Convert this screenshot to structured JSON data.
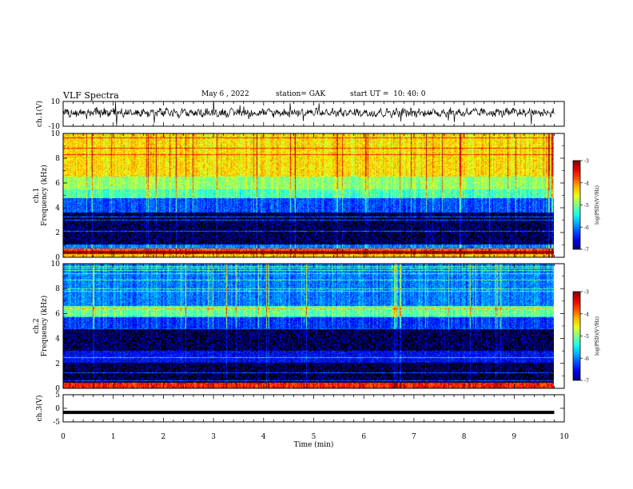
{
  "header": {
    "title": "VLF Spectra",
    "date": "May 6 , 2022",
    "station": "station= GAK",
    "start": "start UT =  10: 40: 0"
  },
  "chart_data": [
    {
      "type": "line",
      "ylabel": "ch.1(V)",
      "ylim": [
        -10,
        10
      ],
      "yticks": [
        "10",
        "-10"
      ],
      "xlim": [
        0,
        10
      ],
      "description_series": "noisy waveform around ~1 V with spikes"
    },
    {
      "type": "heatmap",
      "ylabel": "ch.1\nFrequency (kHz)",
      "ylim": [
        0,
        10
      ],
      "yticks": [
        "0",
        "2",
        "4",
        "6",
        "8",
        "10"
      ],
      "xlim": [
        0,
        10
      ],
      "colorbar": {
        "label": "log(PSD)(V²/Hz)",
        "range": [
          -7,
          -3
        ],
        "ticks": [
          "-3",
          "-4",
          "-5",
          "-6",
          "-7"
        ]
      },
      "bands": [
        {
          "from": 0,
          "to": 0.25,
          "level": -4.3
        },
        {
          "from": 0.25,
          "to": 0.5,
          "level": -3.2
        },
        {
          "from": 0.5,
          "to": 0.7,
          "level": -3.8
        },
        {
          "from": 0.7,
          "to": 1.0,
          "level": -6.0
        },
        {
          "from": 1.0,
          "to": 3.6,
          "level": -6.9
        },
        {
          "from": 3.6,
          "to": 4.8,
          "level": -6.2
        },
        {
          "from": 4.8,
          "to": 5.5,
          "level": -5.2
        },
        {
          "from": 5.5,
          "to": 6.5,
          "level": -4.9
        },
        {
          "from": 6.5,
          "to": 10,
          "level": -4.4
        }
      ]
    },
    {
      "type": "heatmap",
      "ylabel": "ch.2\nFrequency (kHz)",
      "ylim": [
        0,
        10
      ],
      "yticks": [
        "0",
        "2",
        "4",
        "6",
        "8",
        "10"
      ],
      "xlim": [
        0,
        10
      ],
      "colorbar": {
        "label": "log(PSD)(V²/Hz)",
        "range": [
          -7,
          -3
        ],
        "ticks": [
          "-3",
          "-4",
          "-5",
          "-6",
          "-7"
        ]
      },
      "bands": [
        {
          "from": 0,
          "to": 0.4,
          "level": -3.6
        },
        {
          "from": 0.4,
          "to": 2.0,
          "level": -6.95
        },
        {
          "from": 2.0,
          "to": 3.0,
          "level": -6.5
        },
        {
          "from": 3.0,
          "to": 4.8,
          "level": -6.9
        },
        {
          "from": 4.8,
          "to": 5.8,
          "level": -6.3
        },
        {
          "from": 5.8,
          "to": 6.6,
          "level": -5.1
        },
        {
          "from": 6.6,
          "to": 10,
          "level": -6.0
        }
      ]
    },
    {
      "type": "line",
      "ylabel": "ch.3(V)",
      "ylim": [
        -5,
        5
      ],
      "yticks": [
        "5",
        "0",
        "-5"
      ],
      "xlim": [
        0,
        10
      ],
      "xlabel": "Time (min)",
      "xticks": [
        "0",
        "1",
        "2",
        "3",
        "4",
        "5",
        "6",
        "7",
        "8",
        "9",
        "10"
      ],
      "series": [
        {
          "x": [
            0,
            9.8
          ],
          "y": [
            -1.5,
            -1.5
          ]
        }
      ]
    }
  ]
}
